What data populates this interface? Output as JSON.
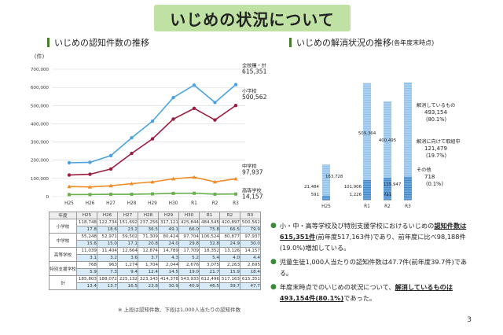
{
  "page": {
    "title": "いじめの状況について",
    "left_heading": "いじめの認知件数の推移",
    "right_heading": "いじめの解消状況の推移",
    "right_heading_sub": "(各年度末時点)",
    "page_number": "3",
    "note": "※ 上段は認知件数、下段は1,000人当たりの認知件数"
  },
  "table": {
    "header": [
      "年度",
      "H25",
      "H26",
      "H27",
      "H28",
      "H29",
      "H30",
      "R1",
      "R2",
      "R3"
    ],
    "rows": [
      {
        "label": "小学校",
        "counts": [
          "118,748",
          "122,734",
          "151,692",
          "237,256",
          "317,121",
          "425,844",
          "484,545",
          "420,897",
          "500,562"
        ],
        "rates": [
          "17.8",
          "18.6",
          "23.2",
          "36.5",
          "49.1",
          "66.0",
          "75.8",
          "66.5",
          "79.9"
        ]
      },
      {
        "label": "中学校",
        "counts": [
          "55,248",
          "52,971",
          "59,502",
          "71,309",
          "80,424",
          "97,704",
          "106,524",
          "80,877",
          "97,937"
        ],
        "rates": [
          "15.6",
          "15.0",
          "17.1",
          "20.8",
          "24.0",
          "29.8",
          "32.8",
          "24.9",
          "30.0"
        ]
      },
      {
        "label": "高等学校",
        "counts": [
          "11,039",
          "11,404",
          "12,664",
          "12,874",
          "14,789",
          "17,709",
          "18,352",
          "13,126",
          "14,157"
        ],
        "rates": [
          "3.1",
          "3.2",
          "3.6",
          "3.7",
          "4.3",
          "5.2",
          "5.4",
          "4.0",
          "4.4"
        ]
      },
      {
        "label": "特別支援学校",
        "counts": [
          "768",
          "963",
          "1,274",
          "1,704",
          "2,044",
          "2,676",
          "3,075",
          "2,263",
          "2,695"
        ],
        "rates": [
          "5.9",
          "7.3",
          "9.4",
          "12.4",
          "14.5",
          "19.0",
          "21.7",
          "15.9",
          "18.4"
        ]
      },
      {
        "label": "計",
        "counts": [
          "185,803",
          "188,072",
          "225,132",
          "323,143",
          "414,378",
          "543,933",
          "612,496",
          "517,163",
          "615,351"
        ],
        "rates": [
          "13.4",
          "13.7",
          "16.5",
          "23.8",
          "30.9",
          "40.9",
          "46.5",
          "39.7",
          "47.7"
        ]
      }
    ]
  },
  "bullets": [
    {
      "pre": "小・中・高等学校及び特別支援学校におけるいじめの",
      "emph": "認知件数は615,351件",
      "post": "(前年度517,163件)であり、前年度に比べ98,188件(19.0%)増加している。"
    },
    {
      "pre": "児童生徒1,000人当たりの認知件数は47.7件(前年度39.7件)である。",
      "emph": "",
      "post": ""
    },
    {
      "pre": "年度末時点でのいじめの状況について、",
      "emph": "解消しているものは493,154件(80.1%)",
      "post": "であった。"
    }
  ],
  "chart_data": [
    {
      "type": "line",
      "title": "いじめの認知件数の推移",
      "ylabel": "(件)",
      "ylim": [
        0,
        700000
      ],
      "yticks": [
        0,
        100000,
        200000,
        300000,
        400000,
        500000,
        600000,
        700000
      ],
      "ytick_labels": [
        "0",
        "100,000",
        "200,000",
        "300,000",
        "400,000",
        "500,000",
        "600,000",
        "700,000"
      ],
      "categories": [
        "H25",
        "H26",
        "H27",
        "H28",
        "H29",
        "H30",
        "R1",
        "R2",
        "R3"
      ],
      "grid": true,
      "series": [
        {
          "name": "全校種・計",
          "color": "#4aa3e0",
          "values": [
            185803,
            188072,
            225132,
            323143,
            414378,
            543933,
            612496,
            517163,
            615351
          ],
          "end_label": "615,351"
        },
        {
          "name": "小学校",
          "color": "#9b1d3f",
          "values": [
            118748,
            122734,
            151692,
            237256,
            317121,
            425844,
            484545,
            420897,
            500562
          ],
          "end_label": "500,562"
        },
        {
          "name": "中学校",
          "color": "#f08a24",
          "values": [
            55248,
            52971,
            59502,
            71309,
            80424,
            97704,
            106524,
            80877,
            97937
          ],
          "end_label": "97,937"
        },
        {
          "name": "高等学校",
          "color": "#6ab04c",
          "values": [
            11039,
            11404,
            12664,
            12874,
            14789,
            17709,
            18352,
            13126,
            14157
          ],
          "end_label": "14,157"
        }
      ]
    },
    {
      "type": "bar",
      "title": "いじめの解消状況の推移",
      "categories": [
        "H25",
        "R1",
        "R2",
        "R3"
      ],
      "stacked": true,
      "segments": [
        {
          "name": "解消しているもの",
          "color": "#8fc1ea",
          "values": [
            163728,
            509364,
            400495,
            493154
          ],
          "labels": [
            "163,728",
            "509,364",
            "400,495",
            ""
          ]
        },
        {
          "name": "解消に向けて取組中",
          "color": "#3c86cc",
          "values": [
            21484,
            101906,
            115947,
            121479
          ],
          "labels": [
            "21,484",
            "101,906",
            "115,947",
            ""
          ]
        },
        {
          "name": "その他",
          "color": "#1a4f8a",
          "values": [
            591,
            1226,
            721,
            718
          ],
          "labels": [
            "591",
            "1,226",
            "721",
            ""
          ]
        }
      ],
      "legend": [
        {
          "text": "解消しているもの",
          "value": "493,154",
          "pct": "(80.1%)"
        },
        {
          "text": "解消に向けて取組中",
          "value": "121,479",
          "pct": "(19.7%)"
        },
        {
          "text": "その他",
          "value": "718",
          "pct": "(0.1%)"
        }
      ]
    }
  ]
}
